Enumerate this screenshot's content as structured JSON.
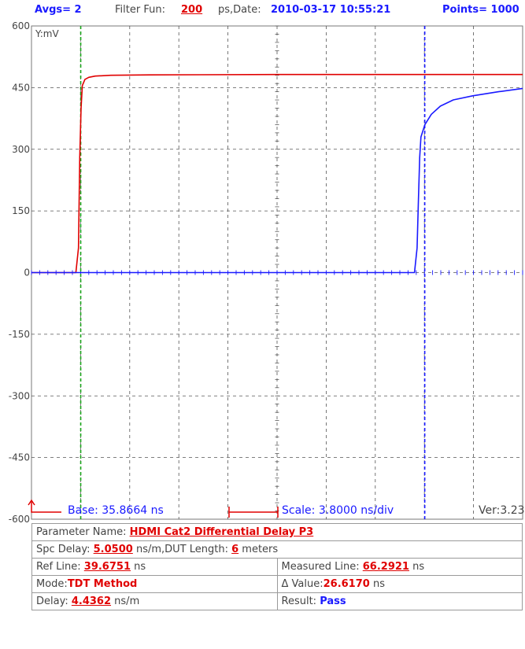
{
  "header": {
    "avgs": "Avgs= 2",
    "filter_label": "Filter Fun:",
    "filter_value": "200",
    "filter_unit": "ps,Date:",
    "date": "2010-03-17 10:55:21",
    "points": "Points= 1000"
  },
  "footer": {
    "base": "Base: 35.8664 ns",
    "scale": "Scale: 3.8000 ns/div",
    "version": "Ver:3.23"
  },
  "params": {
    "parameter_name_label": "Parameter Name:",
    "parameter_name_value": "HDMI Cat2 Differential Delay P3",
    "spc_delay_label": "Spc Delay:",
    "spc_delay_value": "5.0500",
    "spc_delay_unit": "ns/m,DUT Length:",
    "dut_length_value": "6",
    "dut_length_unit": "meters",
    "ref_line_label": "Ref Line:",
    "ref_line_value": "39.6751",
    "ref_line_unit": "ns",
    "measured_line_label": "Measured Line:",
    "measured_line_value": "66.2921",
    "measured_line_unit": "ns",
    "mode_label": "Mode:",
    "mode_value": "TDT Method",
    "delta_label": "Δ Value:",
    "delta_value": "26.6170",
    "delta_unit": "ns",
    "delay_label": "Delay:",
    "delay_value": "4.4362",
    "delay_unit": "ns/m",
    "result_label": "Result:",
    "result_value": "Pass"
  },
  "chart_data": {
    "type": "line",
    "ylabel": "Y:mV",
    "ylim": [
      -600,
      600
    ],
    "yticks": [
      600,
      450,
      300,
      150,
      0,
      -150,
      -300,
      -450,
      -600
    ],
    "xlim": [
      35.8664,
      73.8664
    ],
    "x_unit": "ns",
    "grid": true,
    "ref_cursor_x": 39.6751,
    "measured_cursor_x": 66.2921,
    "colors": {
      "ref": "#1aa31a",
      "measured": "#1a1aff",
      "red": "#e00000",
      "blue": "#1a1aff",
      "grid": "#555555"
    },
    "series": [
      {
        "color": "#e00000",
        "x": [
          35.8664,
          39.3,
          39.5,
          39.6,
          39.7,
          39.8,
          40.0,
          40.3,
          40.8,
          42.0,
          45.0,
          55.0,
          65.0,
          73.8664
        ],
        "values": [
          0,
          0,
          60,
          280,
          400,
          455,
          470,
          475,
          478,
          480,
          481,
          482,
          482,
          482
        ]
      },
      {
        "color": "#1a1aff",
        "x": [
          35.8664,
          65.5,
          65.7,
          65.8,
          65.9,
          66.0,
          66.3,
          66.8,
          67.5,
          68.5,
          70.0,
          72.0,
          73.8664
        ],
        "values": [
          0,
          0,
          60,
          170,
          280,
          330,
          360,
          385,
          405,
          420,
          430,
          440,
          448
        ]
      }
    ]
  }
}
